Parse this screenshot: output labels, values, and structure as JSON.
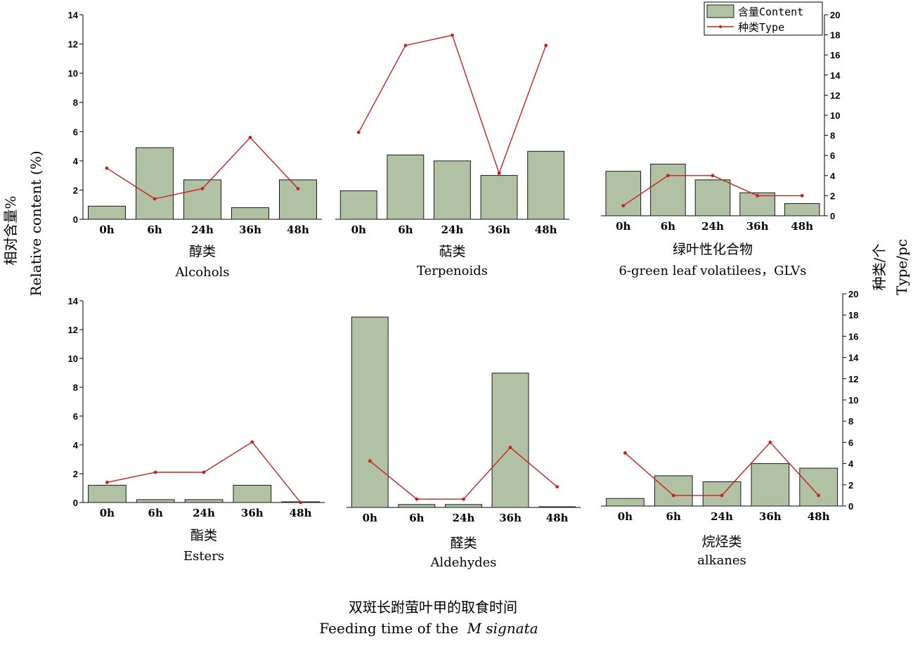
{
  "chart_data": {
    "type": "bar",
    "categories": [
      "0h",
      "6h",
      "24h",
      "36h",
      "48h"
    ],
    "y_left": {
      "label_cn": "相对含量%",
      "label_en": "Relative content (%)",
      "range": [
        0,
        14
      ],
      "ticks": [
        0,
        2,
        4,
        6,
        8,
        10,
        12,
        14
      ]
    },
    "y_right": {
      "label_cn": "种类/个",
      "label_en": "Type/pc",
      "range": [
        0,
        20
      ],
      "ticks": [
        0,
        2,
        4,
        6,
        8,
        10,
        12,
        14,
        16,
        18,
        20
      ]
    },
    "x_title": {
      "cn": "双斑长跗萤叶甲的取食时间",
      "en_prefix": "Feeding time of the",
      "en_species": "M signata"
    },
    "legend": {
      "content": "含量Content",
      "type": "种类Type",
      "placement": "top-right"
    },
    "colors": {
      "bar_fill": "#b1c1a3",
      "bar_stroke": "#1a1a1a",
      "line": "#cc1f1f"
    },
    "panels": [
      {
        "title_cn": "醇类",
        "title_en": "Alcohols",
        "content": [
          0.9,
          4.9,
          2.7,
          0.8,
          2.7
        ],
        "types": [
          5,
          2,
          3,
          8,
          3
        ]
      },
      {
        "title_cn": "萜类",
        "title_en": "Terpenoids",
        "content": [
          1.95,
          4.4,
          4.0,
          3.0,
          4.65
        ],
        "types": [
          8.5,
          17,
          18,
          4.5,
          17
        ]
      },
      {
        "title_cn": "绿叶性化合物",
        "title_en": "6-green leaf volatilees，GLVs",
        "content": [
          3.1,
          3.6,
          2.5,
          1.6,
          0.85
        ],
        "types": [
          1,
          4,
          4,
          2,
          2
        ]
      },
      {
        "title_cn": "酯类",
        "title_en": "Esters",
        "content": [
          1.2,
          0.2,
          0.2,
          1.2,
          0.05
        ],
        "types": [
          2,
          3,
          3,
          6,
          0
        ]
      },
      {
        "title_cn": "醛类",
        "title_en": "Aldehydes",
        "content": [
          12.9,
          0.2,
          0.2,
          9.1,
          0.05
        ],
        "types": [
          4.5,
          0.8,
          0.8,
          5.8,
          2
        ]
      },
      {
        "title_cn": "烷烃类",
        "title_en": "alkanes",
        "content": [
          0.5,
          2.0,
          1.6,
          2.8,
          2.5
        ],
        "types": [
          5,
          1,
          1,
          6,
          1
        ]
      }
    ]
  }
}
